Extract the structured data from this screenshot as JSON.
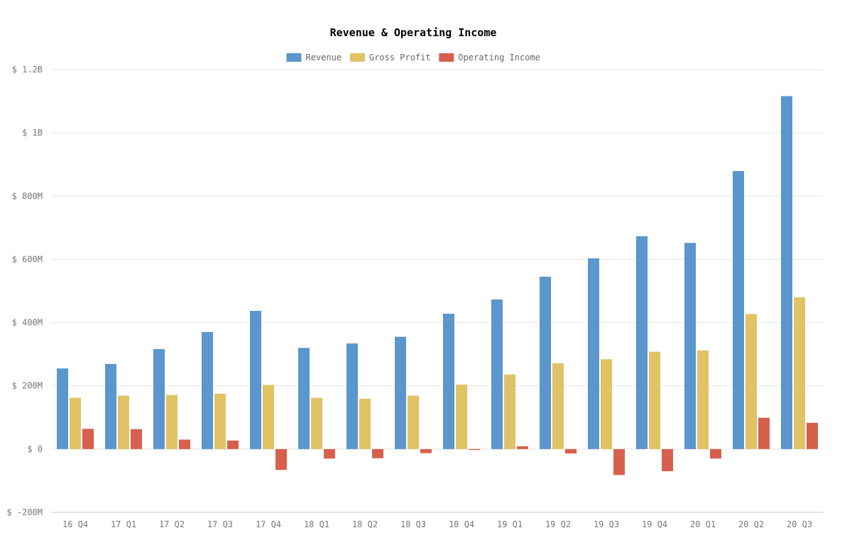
{
  "chart_data": {
    "type": "bar",
    "title": "Revenue & Operating Income",
    "xlabel": "",
    "ylabel": "",
    "ylim": [
      -200000000,
      1200000000
    ],
    "yticks": [
      {
        "value": -200000000,
        "label": "$ -200M"
      },
      {
        "value": 0,
        "label": "$ 0"
      },
      {
        "value": 200000000,
        "label": "$ 200M"
      },
      {
        "value": 400000000,
        "label": "$ 400M"
      },
      {
        "value": 600000000,
        "label": "$ 600M"
      },
      {
        "value": 800000000,
        "label": "$ 800M"
      },
      {
        "value": 1000000000,
        "label": "$ 1B"
      },
      {
        "value": 1200000000,
        "label": "$ 1.2B"
      }
    ],
    "legend_position": "top-center",
    "grid": true,
    "categories": [
      "16 Q4",
      "17 Q1",
      "17 Q2",
      "17 Q3",
      "17 Q4",
      "18 Q1",
      "18 Q2",
      "18 Q3",
      "18 Q4",
      "19 Q1",
      "19 Q2",
      "19 Q3",
      "19 Q4",
      "20 Q1",
      "20 Q2",
      "20 Q3"
    ],
    "series": [
      {
        "name": "Revenue",
        "color": "#5b96cd",
        "values": [
          255000000,
          269000000,
          316000000,
          370000000,
          437000000,
          320000000,
          334000000,
          355000000,
          428000000,
          473000000,
          545000000,
          603000000,
          673000000,
          652000000,
          879000000,
          1116000000
        ]
      },
      {
        "name": "Gross Profit",
        "color": "#e1c265",
        "values": [
          162000000,
          169000000,
          171000000,
          175000000,
          203000000,
          162000000,
          159000000,
          169000000,
          204000000,
          236000000,
          271000000,
          284000000,
          308000000,
          312000000,
          427000000,
          480000000
        ]
      },
      {
        "name": "Operating Income",
        "color": "#d6604d",
        "values": [
          64000000,
          63000000,
          30000000,
          27000000,
          -66000000,
          -30000000,
          -29000000,
          -13000000,
          -3000000,
          9000000,
          -14000000,
          -82000000,
          -70000000,
          -30000000,
          99000000,
          83000000
        ]
      }
    ]
  }
}
